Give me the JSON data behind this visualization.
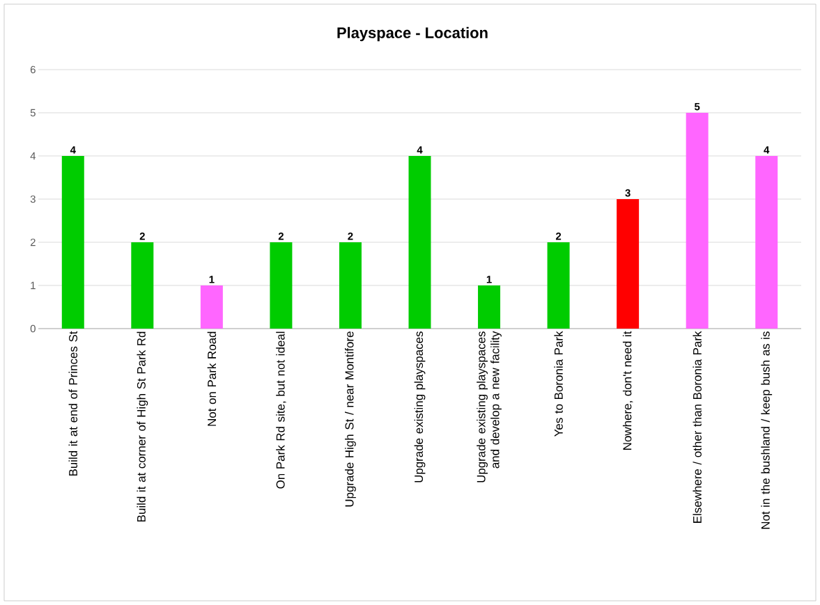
{
  "chart_data": {
    "type": "bar",
    "title": "Playspace - Location",
    "categories": [
      "Build it at end of Princes St",
      "Build it at corner of High St Park Rd",
      "Not on Park Road",
      "On Park Rd site, but not ideal",
      "Upgrade High St / near Montifore",
      "Upgrade existing playspaces",
      "Upgrade existing playspaces and develop a new facility",
      "Yes to Boronia Park",
      "Nowhere, don't need it",
      "Elsewhere / other than Boronia Park",
      "Not in the bushland / keep bush as is"
    ],
    "values": [
      4,
      2,
      1,
      2,
      2,
      4,
      1,
      2,
      3,
      5,
      4
    ],
    "colors": [
      "#00cc00",
      "#00cc00",
      "#ff66ff",
      "#00cc00",
      "#00cc00",
      "#00cc00",
      "#00cc00",
      "#00cc00",
      "#ff0000",
      "#ff66ff",
      "#ff66ff"
    ],
    "ylim": [
      0,
      6
    ],
    "yticks": [
      0,
      1,
      2,
      3,
      4,
      5,
      6
    ],
    "grid": "y",
    "data_labels": true
  }
}
